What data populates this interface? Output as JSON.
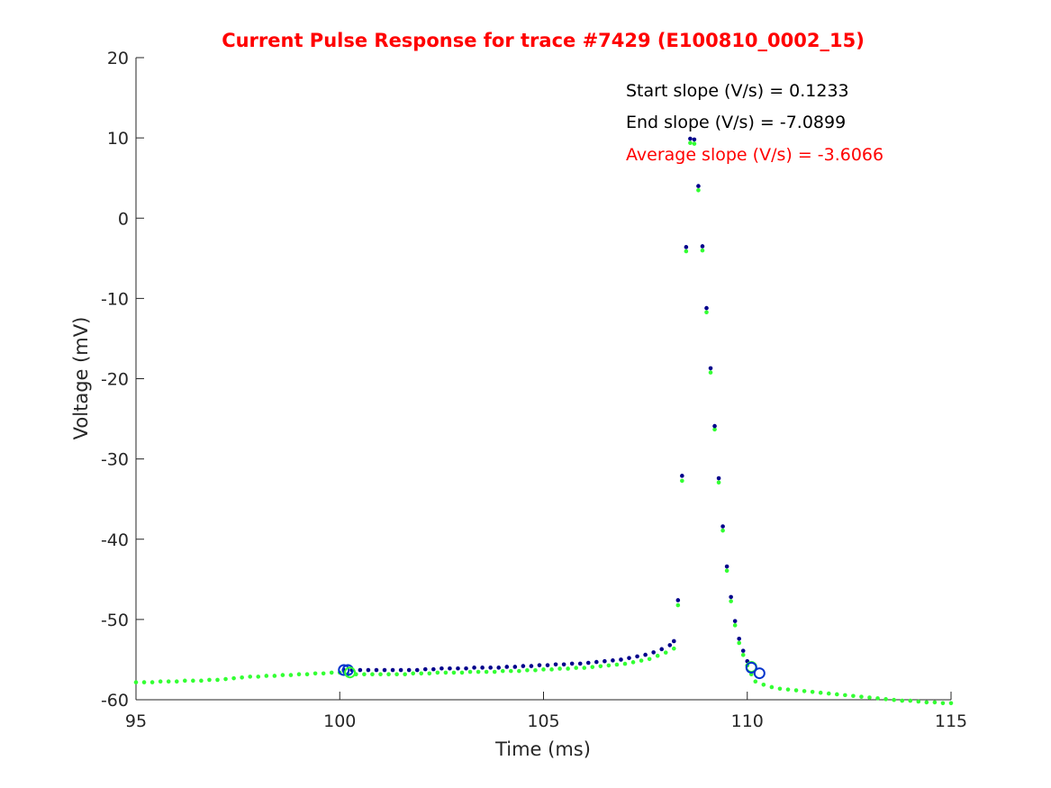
{
  "chart_data": {
    "type": "scatter",
    "title": "Current Pulse Response for trace #7429 (E100810_0002_15)",
    "xlabel": "Time (ms)",
    "ylabel": "Voltage (mV)",
    "xlim": [
      95,
      115
    ],
    "ylim": [
      -60,
      20
    ],
    "xticks": [
      95,
      100,
      105,
      110,
      115
    ],
    "yticks": [
      -60,
      -50,
      -40,
      -30,
      -20,
      -10,
      0,
      10,
      20
    ],
    "grid": false,
    "annotations": [
      {
        "text": "Start slope (V/s) = 0.1233",
        "color": "#000000"
      },
      {
        "text": "End slope (V/s) = -7.0899",
        "color": "#000000"
      },
      {
        "text": "Average slope (V/s) = -3.6066",
        "color": "#ff0000"
      }
    ],
    "series": [
      {
        "color": "#00008b",
        "x": [
          100.1,
          100.3,
          100.5,
          100.7,
          100.9,
          101.1,
          101.3,
          101.5,
          101.7,
          101.9,
          102.1,
          102.3,
          102.5,
          102.7,
          102.9,
          103.1,
          103.3,
          103.5,
          103.7,
          103.9,
          104.1,
          104.3,
          104.5,
          104.7,
          104.9,
          105.1,
          105.3,
          105.5,
          105.7,
          105.9,
          106.1,
          106.3,
          106.5,
          106.7,
          106.9,
          107.1,
          107.3,
          107.5,
          107.7,
          107.9,
          108.1,
          108.2,
          108.3,
          108.4,
          108.5,
          108.6,
          108.7,
          108.8,
          108.9,
          109.0,
          109.1,
          109.2,
          109.3,
          109.4,
          109.5,
          109.6,
          109.7,
          109.8,
          109.9,
          110.0
        ],
        "y": [
          -56.3,
          -56.3,
          -56.3,
          -56.3,
          -56.3,
          -56.3,
          -56.3,
          -56.3,
          -56.3,
          -56.3,
          -56.2,
          -56.2,
          -56.1,
          -56.1,
          -56.1,
          -56.1,
          -56.0,
          -56.0,
          -56.0,
          -56.0,
          -55.9,
          -55.9,
          -55.8,
          -55.8,
          -55.7,
          -55.7,
          -55.6,
          -55.6,
          -55.5,
          -55.5,
          -55.4,
          -55.3,
          -55.2,
          -55.1,
          -55.0,
          -54.8,
          -54.6,
          -54.4,
          -54.1,
          -53.7,
          -53.2,
          -52.7,
          -47.6,
          -32.1,
          -3.6,
          9.9,
          9.8,
          4.0,
          -3.5,
          -11.2,
          -18.7,
          -25.9,
          -32.4,
          -38.4,
          -43.4,
          -47.2,
          -50.2,
          -52.4,
          -53.9,
          -55.2
        ]
      },
      {
        "color": "#33ff33",
        "x": [
          95.0,
          95.2,
          95.4,
          95.6,
          95.8,
          96.0,
          96.2,
          96.4,
          96.6,
          96.8,
          97.0,
          97.2,
          97.4,
          97.6,
          97.8,
          98.0,
          98.2,
          98.4,
          98.6,
          98.8,
          99.0,
          99.2,
          99.4,
          99.6,
          99.8,
          100.0,
          100.2,
          100.4,
          100.6,
          100.8,
          101.0,
          101.2,
          101.4,
          101.6,
          101.8,
          102.0,
          102.2,
          102.4,
          102.6,
          102.8,
          103.0,
          103.2,
          103.4,
          103.6,
          103.8,
          104.0,
          104.2,
          104.4,
          104.6,
          104.8,
          105.0,
          105.2,
          105.4,
          105.6,
          105.8,
          106.0,
          106.2,
          106.4,
          106.6,
          106.8,
          107.0,
          107.2,
          107.4,
          107.6,
          107.8,
          108.0,
          108.2,
          108.3,
          108.4,
          108.5,
          108.6,
          108.7,
          108.8,
          108.9,
          109.0,
          109.1,
          109.2,
          109.3,
          109.4,
          109.5,
          109.6,
          109.7,
          109.8,
          109.9,
          110.0,
          110.1,
          110.2,
          110.4,
          110.6,
          110.8,
          111.0,
          111.2,
          111.4,
          111.6,
          111.8,
          112.0,
          112.2,
          112.4,
          112.6,
          112.8,
          113.0,
          113.2,
          113.4,
          113.6,
          113.8,
          114.0,
          114.2,
          114.4,
          114.6,
          114.8,
          115.0
        ],
        "y": [
          -57.6,
          -57.6,
          -57.6,
          -57.5,
          -57.5,
          -57.5,
          -57.4,
          -57.4,
          -57.4,
          -57.3,
          -57.3,
          -57.2,
          -57.1,
          -57.0,
          -56.9,
          -56.9,
          -56.8,
          -56.8,
          -56.7,
          -56.7,
          -56.6,
          -56.6,
          -56.5,
          -56.5,
          -56.4,
          -56.4,
          -56.6,
          -56.6,
          -56.6,
          -56.6,
          -56.6,
          -56.6,
          -56.6,
          -56.6,
          -56.5,
          -56.5,
          -56.5,
          -56.4,
          -56.4,
          -56.4,
          -56.4,
          -56.3,
          -56.3,
          -56.3,
          -56.3,
          -56.2,
          -56.2,
          -56.2,
          -56.1,
          -56.1,
          -56.0,
          -56.0,
          -55.9,
          -55.9,
          -55.8,
          -55.8,
          -55.7,
          -55.6,
          -55.5,
          -55.4,
          -55.3,
          -55.1,
          -54.9,
          -54.7,
          -54.3,
          -53.9,
          -53.4,
          -48.0,
          -32.5,
          -3.9,
          9.6,
          9.5,
          3.7,
          -3.8,
          -11.5,
          -19.0,
          -26.1,
          -32.7,
          -38.7,
          -43.7,
          -47.5,
          -50.5,
          -52.7,
          -54.2,
          -55.5,
          -56.6,
          -57.5,
          -57.9,
          -58.2,
          -58.4,
          -58.5,
          -58.6,
          -58.7,
          -58.8,
          -58.9,
          -59.0,
          -59.1,
          -59.2,
          -59.3,
          -59.4,
          -59.5,
          -59.6,
          -59.7,
          -59.8,
          -59.9,
          -59.9,
          -60.0,
          -60.1,
          -60.1,
          -60.2,
          -60.2
        ]
      }
    ],
    "markers": [
      {
        "x": 100.1,
        "y": -56.3,
        "color": "#0033cc"
      },
      {
        "x": 100.2,
        "y": -56.3,
        "color": "#0033cc"
      },
      {
        "x": 100.25,
        "y": -56.6,
        "color": "#33ff33"
      },
      {
        "x": 110.1,
        "y": -55.9,
        "color": "#33ff33"
      },
      {
        "x": 110.1,
        "y": -56.0,
        "color": "#0033cc"
      },
      {
        "x": 110.3,
        "y": -56.7,
        "color": "#0033cc"
      }
    ]
  }
}
